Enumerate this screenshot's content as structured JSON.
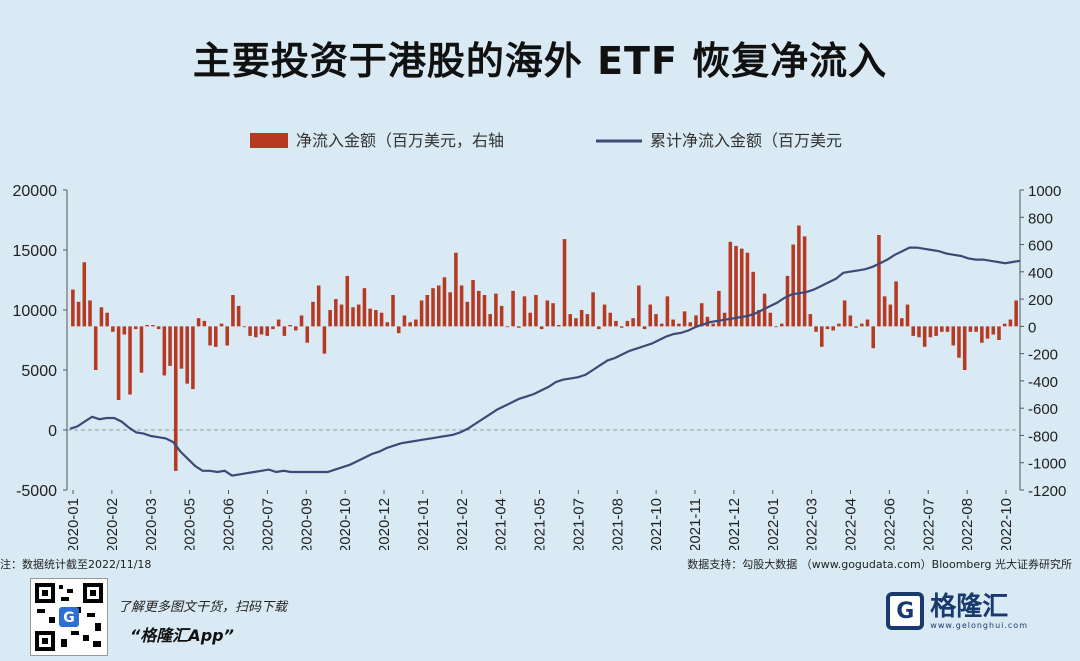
{
  "title": "主要投资于港股的海外 ETF 恢复净流入",
  "note_left": "注：数据统计截至2022/11/18",
  "note_right": "数据支持：勾股大数据 （www.gogudata.com）Bloomberg 光大证券研究所",
  "footer": {
    "promo_line1": "了解更多图文干货，扫码下载",
    "promo_line2": "“格隆汇App”",
    "logo_text": "格隆汇",
    "logo_url": "www.gelonghui.com",
    "logo_mark": "G"
  },
  "colors": {
    "bar": "#b63a22",
    "line": "#3d4a78",
    "background": "#d9eaf4"
  },
  "chart_data": {
    "type": "bar+line",
    "legend": [
      "净流入金额（百万美元，右轴",
      "累计净流入金额（百万美元"
    ],
    "left_axis": {
      "ylim": [
        -5000,
        20000
      ],
      "ticks": [
        "20000",
        "15000",
        "10000",
        "5000",
        "0",
        "-5000"
      ]
    },
    "right_axis": {
      "ylim": [
        -1200,
        1000
      ],
      "ticks": [
        "1000",
        "800",
        "600",
        "400",
        "200",
        "0",
        "-200",
        "-400",
        "-600",
        "-800",
        "-1000",
        "-1200"
      ]
    },
    "x_tick_labels": [
      "2020-01",
      "2020-02",
      "2020-03",
      "2020-05",
      "2020-06",
      "2020-07",
      "2020-09",
      "2020-10",
      "2020-12",
      "2021-01",
      "2021-02",
      "2021-04",
      "2021-05",
      "2021-07",
      "2021-08",
      "2021-10",
      "2021-11",
      "2021-12",
      "2022-01",
      "2022-03",
      "2022-04",
      "2022-06",
      "2022-07",
      "2022-08",
      "2022-10"
    ],
    "series": [
      {
        "name": "净流入金额（百万美元，右轴",
        "axis": "right",
        "kind": "bar",
        "values": [
          270,
          180,
          470,
          190,
          -320,
          140,
          100,
          -40,
          -540,
          -60,
          -500,
          -20,
          -340,
          10,
          10,
          -20,
          -360,
          -290,
          -1060,
          -310,
          -420,
          -460,
          60,
          40,
          -140,
          -150,
          20,
          -140,
          230,
          150,
          0,
          -70,
          -80,
          -60,
          -70,
          -20,
          50,
          -70,
          10,
          -30,
          80,
          -120,
          180,
          300,
          -200,
          120,
          200,
          160,
          370,
          140,
          160,
          280,
          130,
          120,
          100,
          30,
          230,
          -50,
          80,
          30,
          50,
          190,
          230,
          280,
          300,
          360,
          250,
          540,
          300,
          180,
          340,
          260,
          230,
          90,
          240,
          150,
          0,
          260,
          -10,
          220,
          100,
          230,
          -20,
          190,
          170,
          10,
          640,
          90,
          60,
          120,
          90,
          250,
          -20,
          160,
          100,
          40,
          -10,
          40,
          60,
          300,
          -20,
          160,
          90,
          20,
          220,
          50,
          20,
          110,
          30,
          80,
          170,
          70,
          20,
          260,
          100,
          620,
          590,
          570,
          540,
          400,
          120,
          240,
          100,
          0,
          20,
          370,
          600,
          740,
          660,
          90,
          -40,
          -150,
          -20,
          -30,
          20,
          190,
          80,
          -10,
          20,
          50,
          -160,
          670,
          220,
          160,
          330,
          60,
          160,
          -70,
          -80,
          -150,
          -80,
          -70,
          -40,
          -40,
          -140,
          -230,
          -320,
          -40,
          -40,
          -120,
          -90,
          -60,
          -100,
          20,
          50,
          190
        ]
      },
      {
        "name": "累计净流入金额（百万美元",
        "axis": "left",
        "kind": "line",
        "points": [
          [
            0,
            100
          ],
          [
            2,
            300
          ],
          [
            4,
            700
          ],
          [
            6,
            1100
          ],
          [
            8,
            900
          ],
          [
            10,
            1000
          ],
          [
            12,
            1000
          ],
          [
            14,
            700
          ],
          [
            16,
            200
          ],
          [
            18,
            -200
          ],
          [
            20,
            -300
          ],
          [
            22,
            -500
          ],
          [
            24,
            -600
          ],
          [
            26,
            -700
          ],
          [
            28,
            -1000
          ],
          [
            30,
            -1800
          ],
          [
            32,
            -2400
          ],
          [
            34,
            -3000
          ],
          [
            36,
            -3400
          ],
          [
            38,
            -3400
          ],
          [
            40,
            -3500
          ],
          [
            42,
            -3400
          ],
          [
            44,
            -3800
          ],
          [
            46,
            -3700
          ],
          [
            48,
            -3600
          ],
          [
            50,
            -3500
          ],
          [
            52,
            -3400
          ],
          [
            54,
            -3300
          ],
          [
            56,
            -3500
          ],
          [
            58,
            -3400
          ],
          [
            60,
            -3500
          ],
          [
            62,
            -3500
          ],
          [
            64,
            -3500
          ],
          [
            66,
            -3500
          ],
          [
            68,
            -3500
          ],
          [
            70,
            -3500
          ],
          [
            72,
            -3300
          ],
          [
            74,
            -3100
          ],
          [
            76,
            -2900
          ],
          [
            78,
            -2600
          ],
          [
            80,
            -2300
          ],
          [
            82,
            -2000
          ],
          [
            84,
            -1800
          ],
          [
            86,
            -1500
          ],
          [
            88,
            -1300
          ],
          [
            90,
            -1100
          ],
          [
            92,
            -1000
          ],
          [
            94,
            -900
          ],
          [
            96,
            -800
          ],
          [
            98,
            -700
          ],
          [
            100,
            -600
          ],
          [
            102,
            -500
          ],
          [
            104,
            -400
          ],
          [
            106,
            -200
          ],
          [
            108,
            100
          ],
          [
            110,
            500
          ],
          [
            112,
            900
          ],
          [
            114,
            1300
          ],
          [
            116,
            1700
          ],
          [
            118,
            2000
          ],
          [
            120,
            2300
          ],
          [
            122,
            2600
          ],
          [
            124,
            2800
          ],
          [
            126,
            3000
          ],
          [
            128,
            3300
          ],
          [
            130,
            3600
          ],
          [
            132,
            4000
          ],
          [
            134,
            4200
          ],
          [
            136,
            4300
          ],
          [
            138,
            4400
          ],
          [
            140,
            4600
          ],
          [
            142,
            5000
          ],
          [
            144,
            5400
          ],
          [
            146,
            5800
          ],
          [
            148,
            6000
          ],
          [
            150,
            6300
          ],
          [
            152,
            6600
          ],
          [
            154,
            6800
          ],
          [
            156,
            7000
          ],
          [
            158,
            7200
          ],
          [
            160,
            7500
          ],
          [
            162,
            7800
          ],
          [
            164,
            8000
          ],
          [
            166,
            8100
          ],
          [
            168,
            8300
          ],
          [
            170,
            8600
          ],
          [
            172,
            8800
          ],
          [
            174,
            9000
          ],
          [
            176,
            9100
          ],
          [
            178,
            9200
          ],
          [
            180,
            9300
          ],
          [
            182,
            9400
          ],
          [
            184,
            9500
          ],
          [
            186,
            9700
          ],
          [
            188,
            10000
          ],
          [
            190,
            10300
          ],
          [
            192,
            10600
          ],
          [
            194,
            11000
          ],
          [
            196,
            11300
          ],
          [
            198,
            11400
          ],
          [
            200,
            11500
          ],
          [
            202,
            11700
          ],
          [
            204,
            12000
          ],
          [
            206,
            12300
          ],
          [
            208,
            12600
          ],
          [
            210,
            13100
          ],
          [
            212,
            13200
          ],
          [
            214,
            13300
          ],
          [
            216,
            13400
          ],
          [
            218,
            13600
          ],
          [
            220,
            13900
          ],
          [
            222,
            14200
          ],
          [
            224,
            14600
          ],
          [
            226,
            14900
          ],
          [
            228,
            15200
          ],
          [
            230,
            15200
          ],
          [
            232,
            15100
          ],
          [
            234,
            15000
          ],
          [
            236,
            14900
          ],
          [
            238,
            14700
          ],
          [
            240,
            14600
          ],
          [
            242,
            14500
          ],
          [
            244,
            14300
          ],
          [
            246,
            14200
          ],
          [
            248,
            14200
          ],
          [
            250,
            14100
          ],
          [
            252,
            14000
          ],
          [
            254,
            13900
          ],
          [
            256,
            14000
          ],
          [
            258,
            14100
          ]
        ]
      }
    ]
  }
}
